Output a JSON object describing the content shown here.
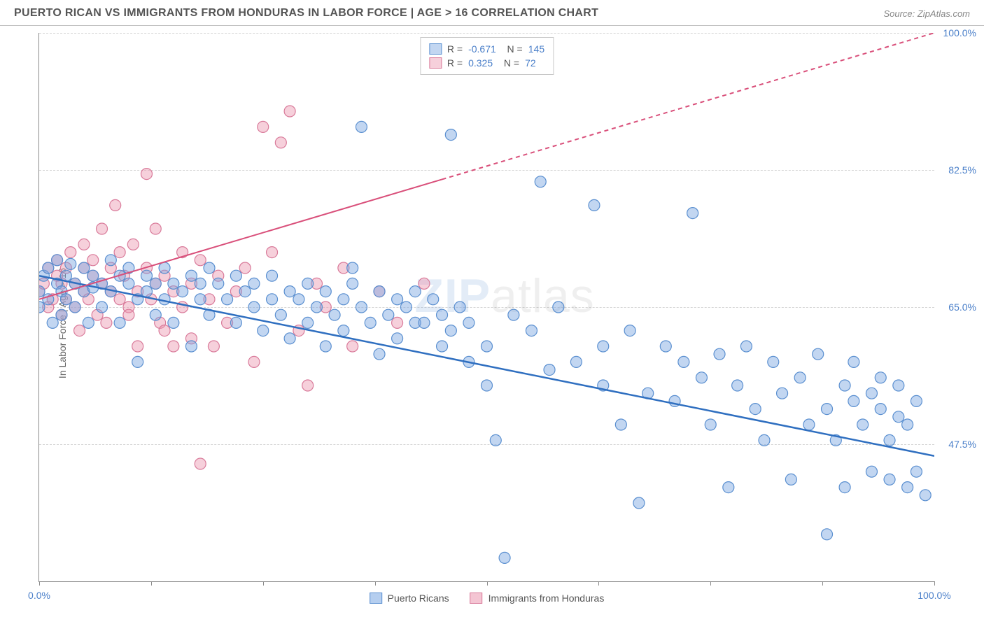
{
  "header": {
    "title": "PUERTO RICAN VS IMMIGRANTS FROM HONDURAS IN LABOR FORCE | AGE > 16 CORRELATION CHART",
    "source": "Source: ZipAtlas.com"
  },
  "ylabel": "In Labor Force | Age > 16",
  "watermark_main": "ZIP",
  "watermark_sub": "atlas",
  "chart": {
    "type": "scatter",
    "xlim": [
      0,
      100
    ],
    "ylim": [
      30,
      100
    ],
    "ytick_values": [
      47.5,
      65.0,
      82.5,
      100.0
    ],
    "ytick_labels": [
      "47.5%",
      "65.0%",
      "82.5%",
      "100.0%"
    ],
    "xtick_values": [
      0,
      12.5,
      25,
      37.5,
      50,
      62.5,
      75,
      87.5,
      100
    ],
    "xtick_labels_shown": {
      "0": "0.0%",
      "100": "100.0%"
    },
    "background_color": "#ffffff",
    "grid_color": "#d5d5d5",
    "marker_radius": 8,
    "marker_stroke_width": 1.2,
    "series": [
      {
        "name": "Puerto Ricans",
        "fill_color": "rgba(120,165,225,0.45)",
        "stroke_color": "#5a8fd0",
        "line_color": "#2f6fc0",
        "line_width": 2.5,
        "R": "-0.671",
        "N": "145",
        "trend": {
          "x1": 0,
          "y1": 69,
          "x2": 100,
          "y2": 46
        },
        "points": [
          [
            0,
            65
          ],
          [
            0,
            67
          ],
          [
            0.5,
            69
          ],
          [
            1,
            66
          ],
          [
            1,
            70
          ],
          [
            1.5,
            63
          ],
          [
            2,
            68
          ],
          [
            2,
            71
          ],
          [
            2.5,
            64
          ],
          [
            2.5,
            67
          ],
          [
            3,
            66
          ],
          [
            3,
            69
          ],
          [
            3.5,
            70.5
          ],
          [
            4,
            68
          ],
          [
            4,
            65
          ],
          [
            5,
            67
          ],
          [
            5,
            70
          ],
          [
            5.5,
            63
          ],
          [
            6,
            69
          ],
          [
            6,
            67.5
          ],
          [
            7,
            68
          ],
          [
            7,
            65
          ],
          [
            8,
            71
          ],
          [
            8,
            67
          ],
          [
            9,
            69
          ],
          [
            9,
            63
          ],
          [
            10,
            68
          ],
          [
            10,
            70
          ],
          [
            11,
            66
          ],
          [
            11,
            58
          ],
          [
            12,
            67
          ],
          [
            12,
            69
          ],
          [
            13,
            68
          ],
          [
            13,
            64
          ],
          [
            14,
            66
          ],
          [
            14,
            70
          ],
          [
            15,
            63
          ],
          [
            15,
            68
          ],
          [
            16,
            67
          ],
          [
            17,
            69
          ],
          [
            17,
            60
          ],
          [
            18,
            66
          ],
          [
            18,
            68
          ],
          [
            19,
            64
          ],
          [
            19,
            70
          ],
          [
            20,
            68
          ],
          [
            21,
            66
          ],
          [
            22,
            63
          ],
          [
            22,
            69
          ],
          [
            23,
            67
          ],
          [
            24,
            65
          ],
          [
            24,
            68
          ],
          [
            25,
            62
          ],
          [
            26,
            66
          ],
          [
            26,
            69
          ],
          [
            27,
            64
          ],
          [
            28,
            67
          ],
          [
            28,
            61
          ],
          [
            29,
            66
          ],
          [
            30,
            68
          ],
          [
            30,
            63
          ],
          [
            31,
            65
          ],
          [
            32,
            67
          ],
          [
            32,
            60
          ],
          [
            33,
            64
          ],
          [
            34,
            66
          ],
          [
            34,
            62
          ],
          [
            35,
            68
          ],
          [
            35,
            70
          ],
          [
            36,
            88
          ],
          [
            36,
            65
          ],
          [
            37,
            63
          ],
          [
            38,
            67
          ],
          [
            38,
            59
          ],
          [
            39,
            64
          ],
          [
            40,
            66
          ],
          [
            40,
            61
          ],
          [
            41,
            65
          ],
          [
            42,
            63
          ],
          [
            42,
            67
          ],
          [
            43,
            63
          ],
          [
            44,
            66
          ],
          [
            45,
            60
          ],
          [
            45,
            64
          ],
          [
            46,
            87
          ],
          [
            46,
            62
          ],
          [
            47,
            65
          ],
          [
            48,
            58
          ],
          [
            48,
            63
          ],
          [
            50,
            60
          ],
          [
            50,
            55
          ],
          [
            51,
            48
          ],
          [
            52,
            33
          ],
          [
            53,
            64
          ],
          [
            55,
            62
          ],
          [
            56,
            81
          ],
          [
            57,
            57
          ],
          [
            58,
            65
          ],
          [
            60,
            58
          ],
          [
            62,
            78
          ],
          [
            63,
            60
          ],
          [
            63,
            55
          ],
          [
            65,
            50
          ],
          [
            66,
            62
          ],
          [
            67,
            40
          ],
          [
            68,
            54
          ],
          [
            70,
            60
          ],
          [
            71,
            53
          ],
          [
            72,
            58
          ],
          [
            73,
            77
          ],
          [
            74,
            56
          ],
          [
            75,
            50
          ],
          [
            76,
            59
          ],
          [
            77,
            42
          ],
          [
            78,
            55
          ],
          [
            79,
            60
          ],
          [
            80,
            52
          ],
          [
            81,
            48
          ],
          [
            82,
            58
          ],
          [
            83,
            54
          ],
          [
            84,
            43
          ],
          [
            85,
            56
          ],
          [
            86,
            50
          ],
          [
            87,
            59
          ],
          [
            88,
            36
          ],
          [
            88,
            52
          ],
          [
            89,
            48
          ],
          [
            90,
            55
          ],
          [
            90,
            42
          ],
          [
            91,
            53
          ],
          [
            91,
            58
          ],
          [
            92,
            50
          ],
          [
            93,
            54
          ],
          [
            93,
            44
          ],
          [
            94,
            52
          ],
          [
            94,
            56
          ],
          [
            95,
            48
          ],
          [
            95,
            43
          ],
          [
            96,
            51
          ],
          [
            96,
            55
          ],
          [
            97,
            42
          ],
          [
            97,
            50
          ],
          [
            98,
            44
          ],
          [
            98,
            53
          ],
          [
            99,
            41
          ]
        ]
      },
      {
        "name": "Immigrants from Honduras",
        "fill_color": "rgba(235,150,175,0.45)",
        "stroke_color": "#d97a9a",
        "line_color": "#d94f7a",
        "line_width": 2,
        "dash_after_x": 45,
        "R": "0.325",
        "N": "72",
        "trend": {
          "x1": 0,
          "y1": 66,
          "x2": 100,
          "y2": 100
        },
        "points": [
          [
            0,
            67
          ],
          [
            0.5,
            68
          ],
          [
            1,
            65
          ],
          [
            1,
            70
          ],
          [
            1.5,
            66
          ],
          [
            2,
            69
          ],
          [
            2,
            71
          ],
          [
            2.5,
            64
          ],
          [
            2.5,
            68
          ],
          [
            3,
            66
          ],
          [
            3,
            70
          ],
          [
            3.5,
            72
          ],
          [
            4,
            68
          ],
          [
            4,
            65
          ],
          [
            4.5,
            62
          ],
          [
            5,
            67
          ],
          [
            5,
            70
          ],
          [
            5,
            73
          ],
          [
            5.5,
            66
          ],
          [
            6,
            69
          ],
          [
            6,
            71
          ],
          [
            6.5,
            64
          ],
          [
            7,
            68
          ],
          [
            7,
            75
          ],
          [
            7.5,
            63
          ],
          [
            8,
            70
          ],
          [
            8,
            67
          ],
          [
            8.5,
            78
          ],
          [
            9,
            66
          ],
          [
            9,
            72
          ],
          [
            9.5,
            69
          ],
          [
            10,
            65
          ],
          [
            10,
            64
          ],
          [
            10.5,
            73
          ],
          [
            11,
            67
          ],
          [
            11,
            60
          ],
          [
            12,
            70
          ],
          [
            12,
            82
          ],
          [
            12.5,
            66
          ],
          [
            13,
            68
          ],
          [
            13,
            75
          ],
          [
            13.5,
            63
          ],
          [
            14,
            69
          ],
          [
            14,
            62
          ],
          [
            15,
            67
          ],
          [
            15,
            60
          ],
          [
            16,
            72
          ],
          [
            16,
            65
          ],
          [
            17,
            61
          ],
          [
            17,
            68
          ],
          [
            18,
            45
          ],
          [
            18,
            71
          ],
          [
            19,
            66
          ],
          [
            19.5,
            60
          ],
          [
            20,
            69
          ],
          [
            21,
            63
          ],
          [
            22,
            67
          ],
          [
            23,
            70
          ],
          [
            24,
            58
          ],
          [
            25,
            88
          ],
          [
            26,
            72
          ],
          [
            27,
            86
          ],
          [
            28,
            90
          ],
          [
            29,
            62
          ],
          [
            30,
            55
          ],
          [
            31,
            68
          ],
          [
            32,
            65
          ],
          [
            34,
            70
          ],
          [
            35,
            60
          ],
          [
            38,
            67
          ],
          [
            40,
            63
          ],
          [
            43,
            68
          ]
        ]
      }
    ]
  },
  "legend_bottom": [
    {
      "label": "Puerto Ricans",
      "fill": "rgba(120,165,225,0.55)",
      "stroke": "#5a8fd0"
    },
    {
      "label": "Immigrants from Honduras",
      "fill": "rgba(235,150,175,0.55)",
      "stroke": "#d97a9a"
    }
  ]
}
